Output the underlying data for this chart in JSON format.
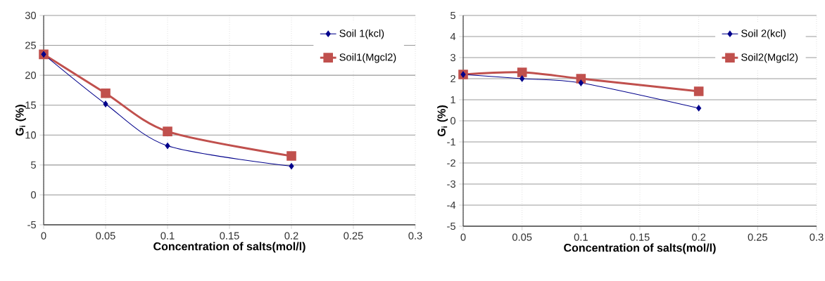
{
  "chart_data": [
    {
      "type": "line",
      "xlabel": "Concentration of   salts(mol/l)",
      "ylabel": "G$_{i}$ (%)",
      "x": [
        0,
        0.05,
        0.1,
        0.2
      ],
      "series": [
        {
          "name": "Soil 1(kcl)",
          "color": "#00008b",
          "marker": "diamond",
          "values": [
            23.5,
            15.2,
            8.2,
            4.8
          ]
        },
        {
          "name": "Soil1(Mgcl2)",
          "color": "#c0504d",
          "marker": "square",
          "values": [
            23.5,
            17,
            10.6,
            6.5
          ]
        }
      ],
      "xlim": [
        0,
        0.3
      ],
      "ylim": [
        -5,
        30
      ],
      "xticks": [
        0,
        0.05,
        0.1,
        0.15,
        0.2,
        0.25,
        0.3
      ],
      "yticks": [
        -5,
        0,
        5,
        10,
        15,
        20,
        25,
        30
      ],
      "grid": true,
      "legend": "top right"
    },
    {
      "type": "line",
      "xlabel": "Concentration of   salts(mol/l)",
      "ylabel": "G$_{i}$ (%)",
      "x": [
        0,
        0.05,
        0.1,
        0.2
      ],
      "series": [
        {
          "name": "Soil 2(kcl)",
          "color": "#00008b",
          "marker": "diamond",
          "values": [
            2.2,
            2.0,
            1.8,
            0.6
          ]
        },
        {
          "name": "Soil2(Mgcl2)",
          "color": "#c0504d",
          "marker": "square",
          "values": [
            2.2,
            2.3,
            2.0,
            1.4
          ]
        }
      ],
      "xlim": [
        0,
        0.3
      ],
      "ylim": [
        -5,
        5
      ],
      "xticks": [
        0,
        0.05,
        0.1,
        0.15,
        0.2,
        0.25,
        0.3
      ],
      "yticks": [
        -5,
        -4,
        -3,
        -2,
        -1,
        0,
        1,
        2,
        3,
        4,
        5
      ],
      "grid": true,
      "legend": "top right"
    }
  ]
}
